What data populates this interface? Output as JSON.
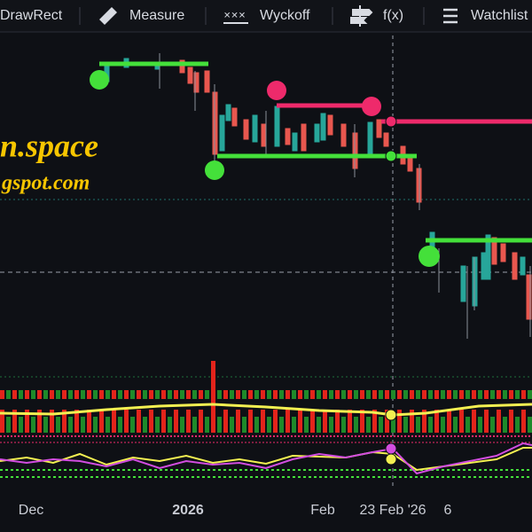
{
  "toolbar": {
    "items": [
      "DrawRect",
      "Measure",
      "Wyckoff",
      "f(x)",
      "Watchlist"
    ]
  },
  "watermark": {
    "lines": [
      "n.space",
      "gspot.com"
    ]
  },
  "x_axis": {
    "labels": [
      "Dec",
      "2026",
      "Feb",
      "6"
    ]
  },
  "crosshair_label": "23 Feb '26"
}
